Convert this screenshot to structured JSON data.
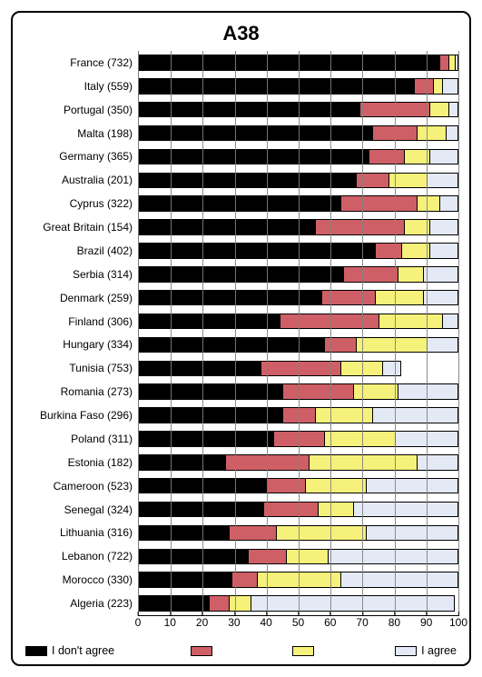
{
  "chart": {
    "type": "bar",
    "orientation": "horizontal",
    "stacked": true,
    "title": "A38",
    "title_fontsize": 22,
    "xlim": [
      0,
      100
    ],
    "xtick_step": 10,
    "label_fontsize": 12,
    "background_color": "#ffffff",
    "grid_color": "#7f7f7f",
    "border_color": "#000000",
    "bar_height_ratio": 0.68,
    "series": [
      {
        "key": "dont_agree",
        "label": "I don't agree",
        "color": "#000000"
      },
      {
        "key": "mid1",
        "label": "",
        "color": "#cf5f66"
      },
      {
        "key": "mid2",
        "label": "",
        "color": "#f5f17a"
      },
      {
        "key": "agree",
        "label": "I agree",
        "color": "#e3e9f5"
      }
    ],
    "rows": [
      {
        "label": "France (732)",
        "values": [
          94,
          3,
          2,
          1
        ]
      },
      {
        "label": "Italy (559)",
        "values": [
          86,
          6,
          3,
          5
        ]
      },
      {
        "label": "Portugal (350)",
        "values": [
          69,
          22,
          6,
          3
        ]
      },
      {
        "label": "Malta (198)",
        "values": [
          73,
          14,
          9,
          4
        ]
      },
      {
        "label": "Germany (365)",
        "values": [
          72,
          11,
          8,
          9
        ]
      },
      {
        "label": "Australia (201)",
        "values": [
          68,
          10,
          12,
          10
        ]
      },
      {
        "label": "Cyprus (322)",
        "values": [
          63,
          24,
          7,
          6
        ]
      },
      {
        "label": "Great Britain (154)",
        "values": [
          55,
          28,
          8,
          9
        ]
      },
      {
        "label": "Brazil (402)",
        "values": [
          74,
          8,
          9,
          9
        ]
      },
      {
        "label": "Serbia (314)",
        "values": [
          64,
          17,
          8,
          11
        ]
      },
      {
        "label": "Denmark (259)",
        "values": [
          57,
          17,
          15,
          11
        ]
      },
      {
        "label": "Finland (306)",
        "values": [
          44,
          31,
          20,
          5
        ]
      },
      {
        "label": "Hungary (334)",
        "values": [
          58,
          10,
          22,
          10
        ]
      },
      {
        "label": "Tunisia (753)",
        "values": [
          38,
          25,
          13,
          6
        ]
      },
      {
        "label": "Romania (273)",
        "values": [
          45,
          22,
          14,
          19
        ]
      },
      {
        "label": "Burkina Faso (296)",
        "values": [
          45,
          10,
          18,
          27
        ]
      },
      {
        "label": "Poland (311)",
        "values": [
          42,
          16,
          22,
          20
        ]
      },
      {
        "label": "Estonia (182)",
        "values": [
          27,
          26,
          34,
          13
        ]
      },
      {
        "label": "Cameroon (523)",
        "values": [
          40,
          12,
          19,
          29
        ]
      },
      {
        "label": "Senegal (324)",
        "values": [
          39,
          17,
          11,
          33
        ]
      },
      {
        "label": "Lithuania (316)",
        "values": [
          28,
          15,
          28,
          29
        ]
      },
      {
        "label": "Lebanon (722)",
        "values": [
          34,
          12,
          13,
          41
        ]
      },
      {
        "label": "Morocco (330)",
        "values": [
          29,
          8,
          26,
          37
        ]
      },
      {
        "label": "Algeria (223)",
        "values": [
          22,
          6,
          7,
          64
        ]
      }
    ],
    "xticks": [
      0,
      10,
      20,
      30,
      40,
      50,
      60,
      70,
      80,
      90,
      100
    ]
  }
}
